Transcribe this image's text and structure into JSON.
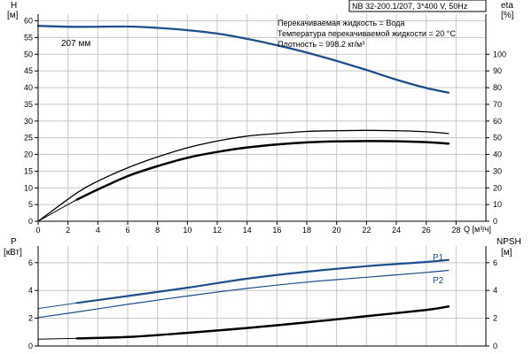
{
  "chart_data": [
    {
      "type": "line",
      "panel": "top",
      "title": "NB 32-200.1/207, 3*400 V, 50Hz",
      "info_lines": [
        "Перекачиваемая жидкость = Вода",
        "Температура перекачиваемой жидкости = 20 °C",
        "Плотность = 998.2 кг/м³"
      ],
      "xlabel": "Q [м³/ч]",
      "xlim": [
        0,
        30
      ],
      "xticks": [
        0,
        2,
        4,
        6,
        8,
        10,
        12,
        14,
        16,
        18,
        20,
        22,
        24,
        26,
        28
      ],
      "ylabel_left": [
        "H",
        "[м]"
      ],
      "ylim_left": [
        0,
        62
      ],
      "yticks_left": [
        0,
        5,
        10,
        15,
        20,
        25,
        30,
        35,
        40,
        45,
        50,
        55,
        60
      ],
      "ylabel_right": [
        "eta",
        "[%]"
      ],
      "ylim_right": [
        0,
        124
      ],
      "yticks_right": [
        0,
        10,
        20,
        30,
        40,
        50,
        60,
        70,
        80,
        90,
        100
      ],
      "grid": true,
      "annotation": "207 мм",
      "series": [
        {
          "axis": "left",
          "color": "#1f4e8c",
          "width": 2.3,
          "x": [
            0,
            2.6,
            6,
            8,
            10,
            12,
            14,
            16,
            18,
            20,
            22,
            24,
            26,
            27.5
          ],
          "values": [
            58.5,
            58.2,
            58.3,
            57.9,
            57.2,
            56.2,
            54.6,
            52.7,
            50.5,
            48.0,
            45.3,
            42.4,
            39.9,
            38.5
          ]
        },
        {
          "axis": "right",
          "color": "#000000",
          "width": 1.3,
          "x": [
            0,
            2.6,
            4,
            6,
            8,
            10,
            12,
            14,
            16,
            18,
            20,
            22,
            24,
            26,
            27.5
          ],
          "values": [
            0,
            17,
            24,
            32,
            38.5,
            44,
            48,
            51,
            52.5,
            53.8,
            54.2,
            54.4,
            54.2,
            53.6,
            52.5
          ]
        },
        {
          "axis": "right",
          "color": "#000000",
          "width": 2.5,
          "x": [
            2.6,
            4,
            6,
            8,
            10,
            12,
            14,
            16,
            18,
            20,
            22,
            24,
            26,
            27.5
          ],
          "values": [
            13,
            19,
            27,
            33,
            38,
            41.5,
            44.2,
            46,
            47.2,
            47.8,
            48.0,
            47.9,
            47.4,
            46.5
          ]
        },
        {
          "axis": "right",
          "color": "#000000",
          "width": 1,
          "x": [
            0,
            1,
            2,
            2.6
          ],
          "values": [
            0,
            5,
            10,
            13
          ]
        }
      ]
    },
    {
      "type": "line",
      "panel": "bottom",
      "xlim": [
        0,
        30
      ],
      "ylabel_left": [
        "P",
        "[кВт]"
      ],
      "ylim_left": [
        0,
        7.2
      ],
      "yticks_left": [
        0,
        2,
        4,
        6
      ],
      "ylabel_right": [
        "NPSH",
        "[м]"
      ],
      "ylim_right": [
        0,
        7.2
      ],
      "yticks_right": [
        0,
        2,
        4,
        6
      ],
      "grid": true,
      "series": [
        {
          "name": "P1",
          "axis": "left",
          "color": "#1f4e8c",
          "width": 2.2,
          "x": [
            2.6,
            6,
            10,
            14,
            18,
            22,
            26,
            27.5
          ],
          "values": [
            3.1,
            3.6,
            4.2,
            4.85,
            5.35,
            5.75,
            6.05,
            6.2
          ]
        },
        {
          "axis": "left",
          "color": "#1f4e8c",
          "width": 1,
          "x": [
            0,
            2.6
          ],
          "values": [
            2.7,
            3.1
          ]
        },
        {
          "name": "P2",
          "axis": "left",
          "color": "#1f4e8c",
          "width": 1.2,
          "x": [
            0,
            2.6,
            6,
            10,
            14,
            18,
            22,
            26,
            27.5
          ],
          "values": [
            2.05,
            2.45,
            3.0,
            3.6,
            4.15,
            4.6,
            4.95,
            5.3,
            5.45
          ]
        },
        {
          "axis": "right",
          "color": "#000000",
          "width": 2.5,
          "x": [
            2.6,
            6,
            10,
            14,
            18,
            22,
            26,
            27.5
          ],
          "values": [
            0.55,
            0.65,
            0.95,
            1.3,
            1.7,
            2.15,
            2.6,
            2.85
          ]
        },
        {
          "axis": "right",
          "color": "#000000",
          "width": 1,
          "x": [
            0,
            2.6
          ],
          "values": [
            0.5,
            0.55
          ]
        }
      ]
    }
  ]
}
